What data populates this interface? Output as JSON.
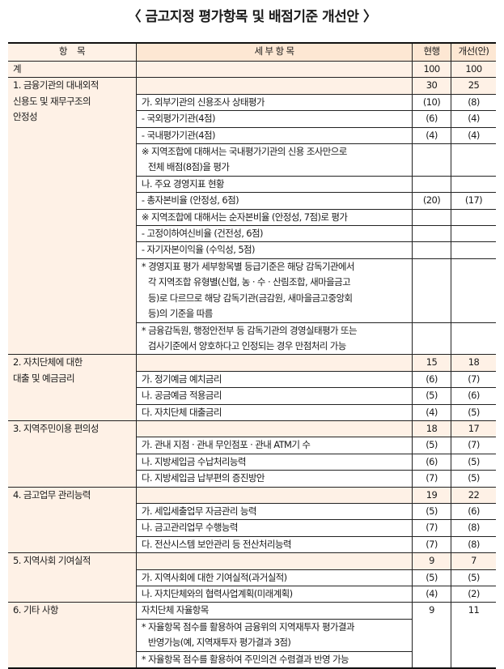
{
  "title": "〈 금고지정 평가항목 및 배점기준 개선안 〉",
  "headers": {
    "item": "항    목",
    "detail": "세 부 항 목",
    "current": "현행",
    "proposed": "개선(안)"
  },
  "total": {
    "label": "계",
    "current": "100",
    "proposed": "100"
  },
  "groups": [
    {
      "label": "1. 금융기관의 대내외적\n신용도 및 재무구조의\n안정성",
      "current": "30",
      "proposed": "25",
      "rows": [
        {
          "text": "가. 외부기관의 신용조사 상태평가",
          "current": "(10)",
          "proposed": "(8)"
        },
        {
          "text": "- 국외평가기관(4점)",
          "current": "(6)",
          "proposed": "(4)"
        },
        {
          "text": "- 국내평가기관(4점)",
          "current": "(4)",
          "proposed": "(4)"
        },
        {
          "text": "※ 지역조합에 대해서는 국내평가기관의 신용 조사만으로\n전체 배점(8점)을 평가",
          "current": "",
          "proposed": ""
        },
        {
          "text": "나. 주요 경영지표 현황",
          "current": "",
          "proposed": ""
        },
        {
          "text": "- 총자본비율 (안정성, 6점)",
          "current": "(20)",
          "proposed": "(17)"
        },
        {
          "text": "※ 지역조합에 대해서는 순자본비율 (안정성, 7점)로 평가",
          "current": "",
          "proposed": ""
        },
        {
          "text": "- 고정이하여신비율 (건전성, 6점)",
          "current": "",
          "proposed": ""
        },
        {
          "text": "- 자기자본이익율 (수익성, 5점)",
          "current": "",
          "proposed": ""
        },
        {
          "text": "* 경영지표 평가 세부항목별 등급기준은 해당 감독기관에서\n각 지역조합 유형별(신협, 농 · 수 · 산림조합, 새마을금고\n등)로 다르므로 해당 감독기관(금감원, 새마을금고중앙회\n등)의 기준을 따름",
          "current": "",
          "proposed": ""
        },
        {
          "text": "* 금융감독원, 행정안전부 등 감독기관의 경영실태평가 또는\n검사기준에서 양호하다고 인정되는 경우 만점처리 가능",
          "current": "",
          "proposed": ""
        }
      ]
    },
    {
      "label": "2. 자치단체에 대한\n대출 및 예금금리",
      "current": "15",
      "proposed": "18",
      "rows": [
        {
          "text": "가. 정기예금 예치금리",
          "current": "(6)",
          "proposed": "(7)"
        },
        {
          "text": "나. 공금예금 적용금리",
          "current": "(5)",
          "proposed": "(6)"
        },
        {
          "text": "다. 자치단체 대출금리",
          "current": "(4)",
          "proposed": "(5)"
        }
      ]
    },
    {
      "label": "3. 지역주민이용 편의성",
      "current": "18",
      "proposed": "17",
      "rows": [
        {
          "text": "가. 관내 지점 · 관내 무인점포 · 관내 ATM기 수",
          "current": "(5)",
          "proposed": "(7)"
        },
        {
          "text": "나. 지방세입금 수납처리능력",
          "current": "(6)",
          "proposed": "(5)"
        },
        {
          "text": "다. 지방세입금 납부편의 증진방안",
          "current": "(7)",
          "proposed": "(5)"
        }
      ]
    },
    {
      "label": "4. 금고업무 관리능력",
      "current": "19",
      "proposed": "22",
      "rows": [
        {
          "text": "가. 세입세출업무 자금관리 능력",
          "current": "(5)",
          "proposed": "(6)"
        },
        {
          "text": "나. 금고관리업무 수행능력",
          "current": "(7)",
          "proposed": "(8)"
        },
        {
          "text": "다. 전산시스템 보안관리 등 전산처리능력",
          "current": "(7)",
          "proposed": "(8)"
        }
      ]
    },
    {
      "label": "5. 지역사회 기여실적",
      "current": "9",
      "proposed": "7",
      "rows": [
        {
          "text": "가. 지역사회에 대한 기여실적(과거실적)",
          "current": "(5)",
          "proposed": "(5)"
        },
        {
          "text": "나. 자치단체와의 협력사업계획(미래계획)",
          "current": "(4)",
          "proposed": "(2)"
        }
      ]
    }
  ],
  "last_group": {
    "label": "6. 기타 사항",
    "current": "9",
    "proposed": "11",
    "rows": [
      {
        "text": "자치단체 자율항목"
      },
      {
        "text": "* 자율항목 점수를 활용하여 금융위의 지역재투자 평가결과\n반영가능(예, 지역재투자 평가결과 3점)"
      },
      {
        "text": "* 자율항목 점수를 활용하여 주민의견 수렴결과 반영 가능"
      }
    ]
  }
}
